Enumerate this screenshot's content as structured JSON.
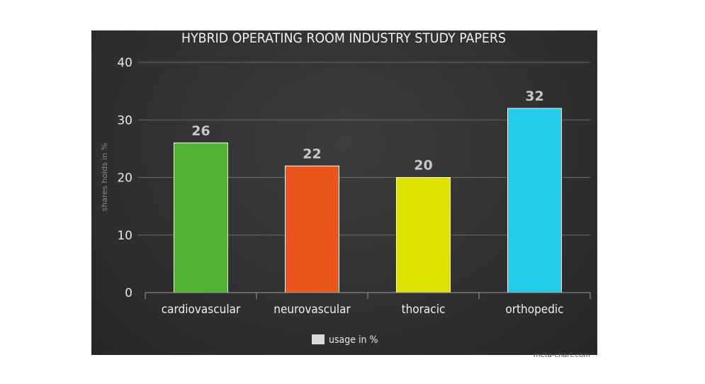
{
  "chart_data": {
    "type": "bar",
    "title": "HYBRID OPERATING ROOM INDUSTRY STUDY PAPERS",
    "ylabel": "shares holds in %",
    "xlabel": "",
    "categories": [
      "cardiovascular",
      "neurovascular",
      "thoracic",
      "orthopedic"
    ],
    "series": [
      {
        "name": "usage in %",
        "values": [
          26,
          22,
          20,
          32
        ]
      }
    ],
    "bar_colors": [
      "#4fb233",
      "#ea561b",
      "#dde100",
      "#22cbe6"
    ],
    "legend_swatch_color": "#d9d9d9",
    "ylim": [
      0,
      40
    ],
    "yticks": [
      0,
      10,
      20,
      30,
      40
    ],
    "grid": true,
    "legend_position": "bottom",
    "background_color": "#333333",
    "watermark": "meta-chart.com"
  }
}
